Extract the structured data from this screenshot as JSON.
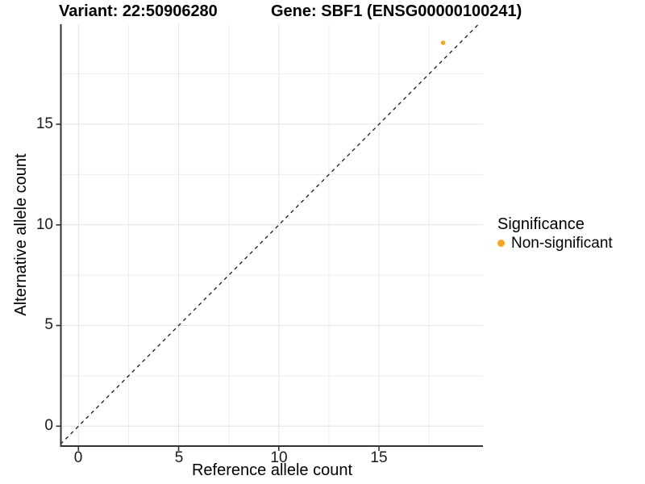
{
  "chart_data": {
    "type": "scatter",
    "title_left": "Variant: 22:50906280",
    "title_right": "Gene: SBF1 (ENSG00000100241)",
    "xlabel": "Reference allele count",
    "ylabel": "Alternative allele count",
    "xlim": [
      -0.9,
      20.2
    ],
    "ylim": [
      -1.0,
      20.0
    ],
    "x_ticks": [
      0,
      5,
      10,
      15
    ],
    "y_ticks": [
      0,
      5,
      10,
      15
    ],
    "x_tick_labels": [
      "0",
      "5",
      "10",
      "15"
    ],
    "y_tick_labels": [
      "0",
      "5",
      "10",
      "15"
    ],
    "minor_ticks": [
      2.5,
      7.5,
      12.5,
      17.5
    ],
    "grid": true,
    "legend_position": "right",
    "reference_line": {
      "type": "identity y=x",
      "style": "dashed",
      "color": "#1a1a1a"
    },
    "points": [
      {
        "x": 18.2,
        "y": 19.05,
        "series": "Non-significant",
        "color": "#F9A323"
      }
    ],
    "colors": {
      "non_significant": "#F9A323",
      "grid_major": "#e3e3e3",
      "grid_minor": "#eeeeee",
      "axis_line": "#333333"
    },
    "legend": {
      "title": "Significance",
      "items": [
        {
          "label": "Non-significant",
          "color": "#F9A323"
        }
      ]
    }
  }
}
